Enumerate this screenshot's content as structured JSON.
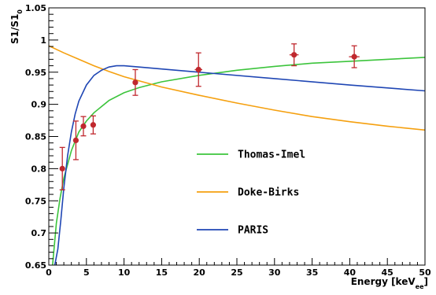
{
  "chart_data": {
    "type": "scatter",
    "title": "",
    "xlabel": "Energy [keV_ee]",
    "ylabel": "S1/S1_0",
    "xlabel_text": "Energy [keV",
    "xlabel_sub": "ee",
    "xlabel_close": "]",
    "ylabel_main": "S1/S1",
    "ylabel_sub": "0",
    "xlim": [
      0,
      50
    ],
    "ylim": [
      0.65,
      1.05
    ],
    "grid": false,
    "legend_position": "center-right",
    "x_ticks": [
      0,
      5,
      10,
      15,
      20,
      25,
      30,
      35,
      40,
      45,
      50
    ],
    "x_tick_labels": [
      "0",
      "5",
      "10",
      "15",
      "20",
      "25",
      "30",
      "35",
      "40",
      "45",
      "50"
    ],
    "y_ticks": [
      0.65,
      0.7,
      0.75,
      0.8,
      0.85,
      0.9,
      0.95,
      1.0,
      1.05
    ],
    "y_tick_labels": [
      "0.65",
      "0.7",
      "0.75",
      "0.8",
      "0.85",
      "0.9",
      "0.95",
      "1",
      "1.05"
    ],
    "data_points": {
      "color": "#c0282e",
      "points": [
        {
          "x": 1.8,
          "y": 0.8,
          "yerr": 0.033,
          "xerr": 0.3
        },
        {
          "x": 3.6,
          "y": 0.844,
          "yerr": 0.03,
          "xerr": 0.3
        },
        {
          "x": 4.6,
          "y": 0.866,
          "yerr": 0.015,
          "xerr": 0.3
        },
        {
          "x": 5.9,
          "y": 0.868,
          "yerr": 0.014,
          "xerr": 0.3
        },
        {
          "x": 11.5,
          "y": 0.934,
          "yerr": 0.02,
          "xerr": 0.3
        },
        {
          "x": 19.9,
          "y": 0.954,
          "yerr": 0.026,
          "xerr": 0.5
        },
        {
          "x": 32.6,
          "y": 0.977,
          "yerr": 0.017,
          "xerr": 0.6
        },
        {
          "x": 40.6,
          "y": 0.974,
          "yerr": 0.017,
          "xerr": 0.7
        }
      ]
    },
    "series": [
      {
        "name": "Thomas-Imel",
        "color": "#3cc43c",
        "x": [
          0.5,
          1,
          1.5,
          2,
          3,
          4,
          5,
          6,
          8,
          10,
          12,
          15,
          20,
          25,
          30,
          35,
          40,
          45,
          50
        ],
        "y": [
          0.65,
          0.715,
          0.754,
          0.785,
          0.828,
          0.857,
          0.874,
          0.887,
          0.906,
          0.918,
          0.926,
          0.935,
          0.945,
          0.953,
          0.959,
          0.964,
          0.967,
          0.97,
          0.973
        ]
      },
      {
        "name": "Doke-Birks",
        "color": "#f5a00f",
        "x": [
          0,
          2,
          4,
          6,
          8,
          10,
          15,
          20,
          25,
          30,
          35,
          40,
          45,
          50
        ],
        "y": [
          0.991,
          0.98,
          0.97,
          0.96,
          0.951,
          0.943,
          0.927,
          0.914,
          0.902,
          0.891,
          0.881,
          0.873,
          0.866,
          0.86
        ]
      },
      {
        "name": "PARIS",
        "color": "#1f46b4",
        "x": [
          0.8,
          1.2,
          1.6,
          2,
          2.5,
          3,
          3.5,
          4,
          5,
          6,
          7,
          8,
          9,
          10,
          12,
          15,
          20,
          30,
          40,
          50
        ],
        "y": [
          0.65,
          0.675,
          0.72,
          0.77,
          0.82,
          0.857,
          0.885,
          0.905,
          0.93,
          0.945,
          0.953,
          0.958,
          0.96,
          0.96,
          0.958,
          0.955,
          0.95,
          0.94,
          0.93,
          0.921
        ]
      }
    ],
    "legend": [
      {
        "name": "Thomas-Imel",
        "color": "#3cc43c"
      },
      {
        "name": "Doke-Birks",
        "color": "#f5a00f"
      },
      {
        "name": "PARIS",
        "color": "#1f46b4"
      }
    ]
  }
}
